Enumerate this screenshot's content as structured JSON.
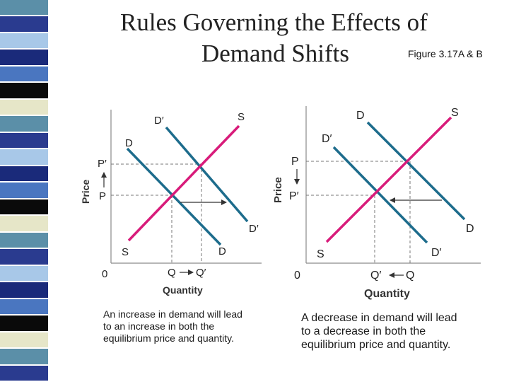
{
  "slide": {
    "title_line1": "Rules Governing the Effects of",
    "title_line2": "Demand Shifts",
    "figure_label": "Figure 3.17A & B"
  },
  "decoration": {
    "strip_colors": [
      "#5b8fa8",
      "#2a3b8f",
      "#a8c8e8",
      "#1a2a7a",
      "#4a76c0",
      "#0a0a0a",
      "#e6e6c8",
      "#5b8fa8",
      "#2a3b8f",
      "#a8c8e8",
      "#1a2a7a",
      "#4a76c0",
      "#0a0a0a",
      "#e6e6c8",
      "#5b8fa8",
      "#2a3b8f",
      "#a8c8e8",
      "#1a2a7a",
      "#4a76c0",
      "#0a0a0a",
      "#e6e6c8",
      "#5b8fa8",
      "#2a3b8f"
    ]
  },
  "colors": {
    "supply": "#d81b7a",
    "demand": "#1d6c8c",
    "axis": "#8a8a8a",
    "guide": "#777777"
  },
  "graph_a": {
    "ylabel": "Price",
    "xlabel": "Quantity",
    "origin": "0",
    "price_new": "P′",
    "price_old": "P",
    "qty_old": "Q",
    "qty_new": "Q′",
    "supply_top": "S",
    "supply_bottom": "S",
    "demand_old_top": "D",
    "demand_old_bottom": "D",
    "demand_new_top": "D′",
    "demand_new_bottom": "D′",
    "caption": [
      "An increase in demand will lead",
      "to an increase in both the",
      "equilibrium price and quantity."
    ]
  },
  "graph_b": {
    "ylabel": "Price",
    "xlabel": "Quantity",
    "origin": "0",
    "price_old": "P",
    "price_new": "P′",
    "qty_new": "Q′",
    "qty_old": "Q",
    "supply_top": "S",
    "supply_bottom": "S",
    "demand_old_top": "D",
    "demand_old_bottom": "D",
    "demand_new_top": "D′",
    "demand_new_bottom": "D′",
    "caption": [
      "A decrease in demand will lead",
      "to a decrease in both the",
      "equilibrium price and quantity."
    ]
  }
}
